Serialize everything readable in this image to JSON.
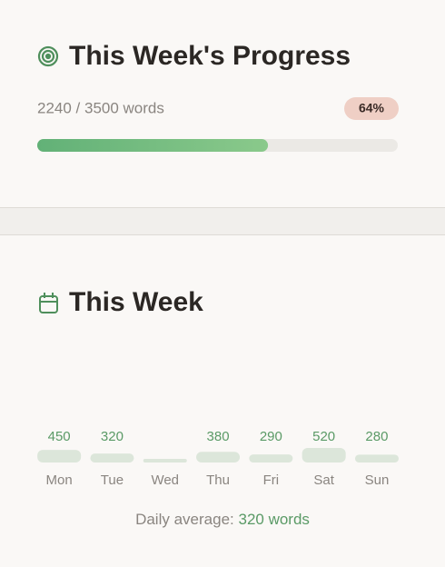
{
  "progress": {
    "title": "This Week's Progress",
    "text": "2240 / 3500 words",
    "percent": {
      "value": 64,
      "label": "64%"
    }
  },
  "chart_data": {
    "type": "bar",
    "title": "This Week",
    "categories": [
      "Mon",
      "Tue",
      "Wed",
      "Thu",
      "Fri",
      "Sat",
      "Sun"
    ],
    "values": [
      450,
      320,
      null,
      380,
      290,
      520,
      280
    ],
    "color": "#dce6da",
    "average_label": "Daily average:",
    "average_value": "320 words"
  }
}
